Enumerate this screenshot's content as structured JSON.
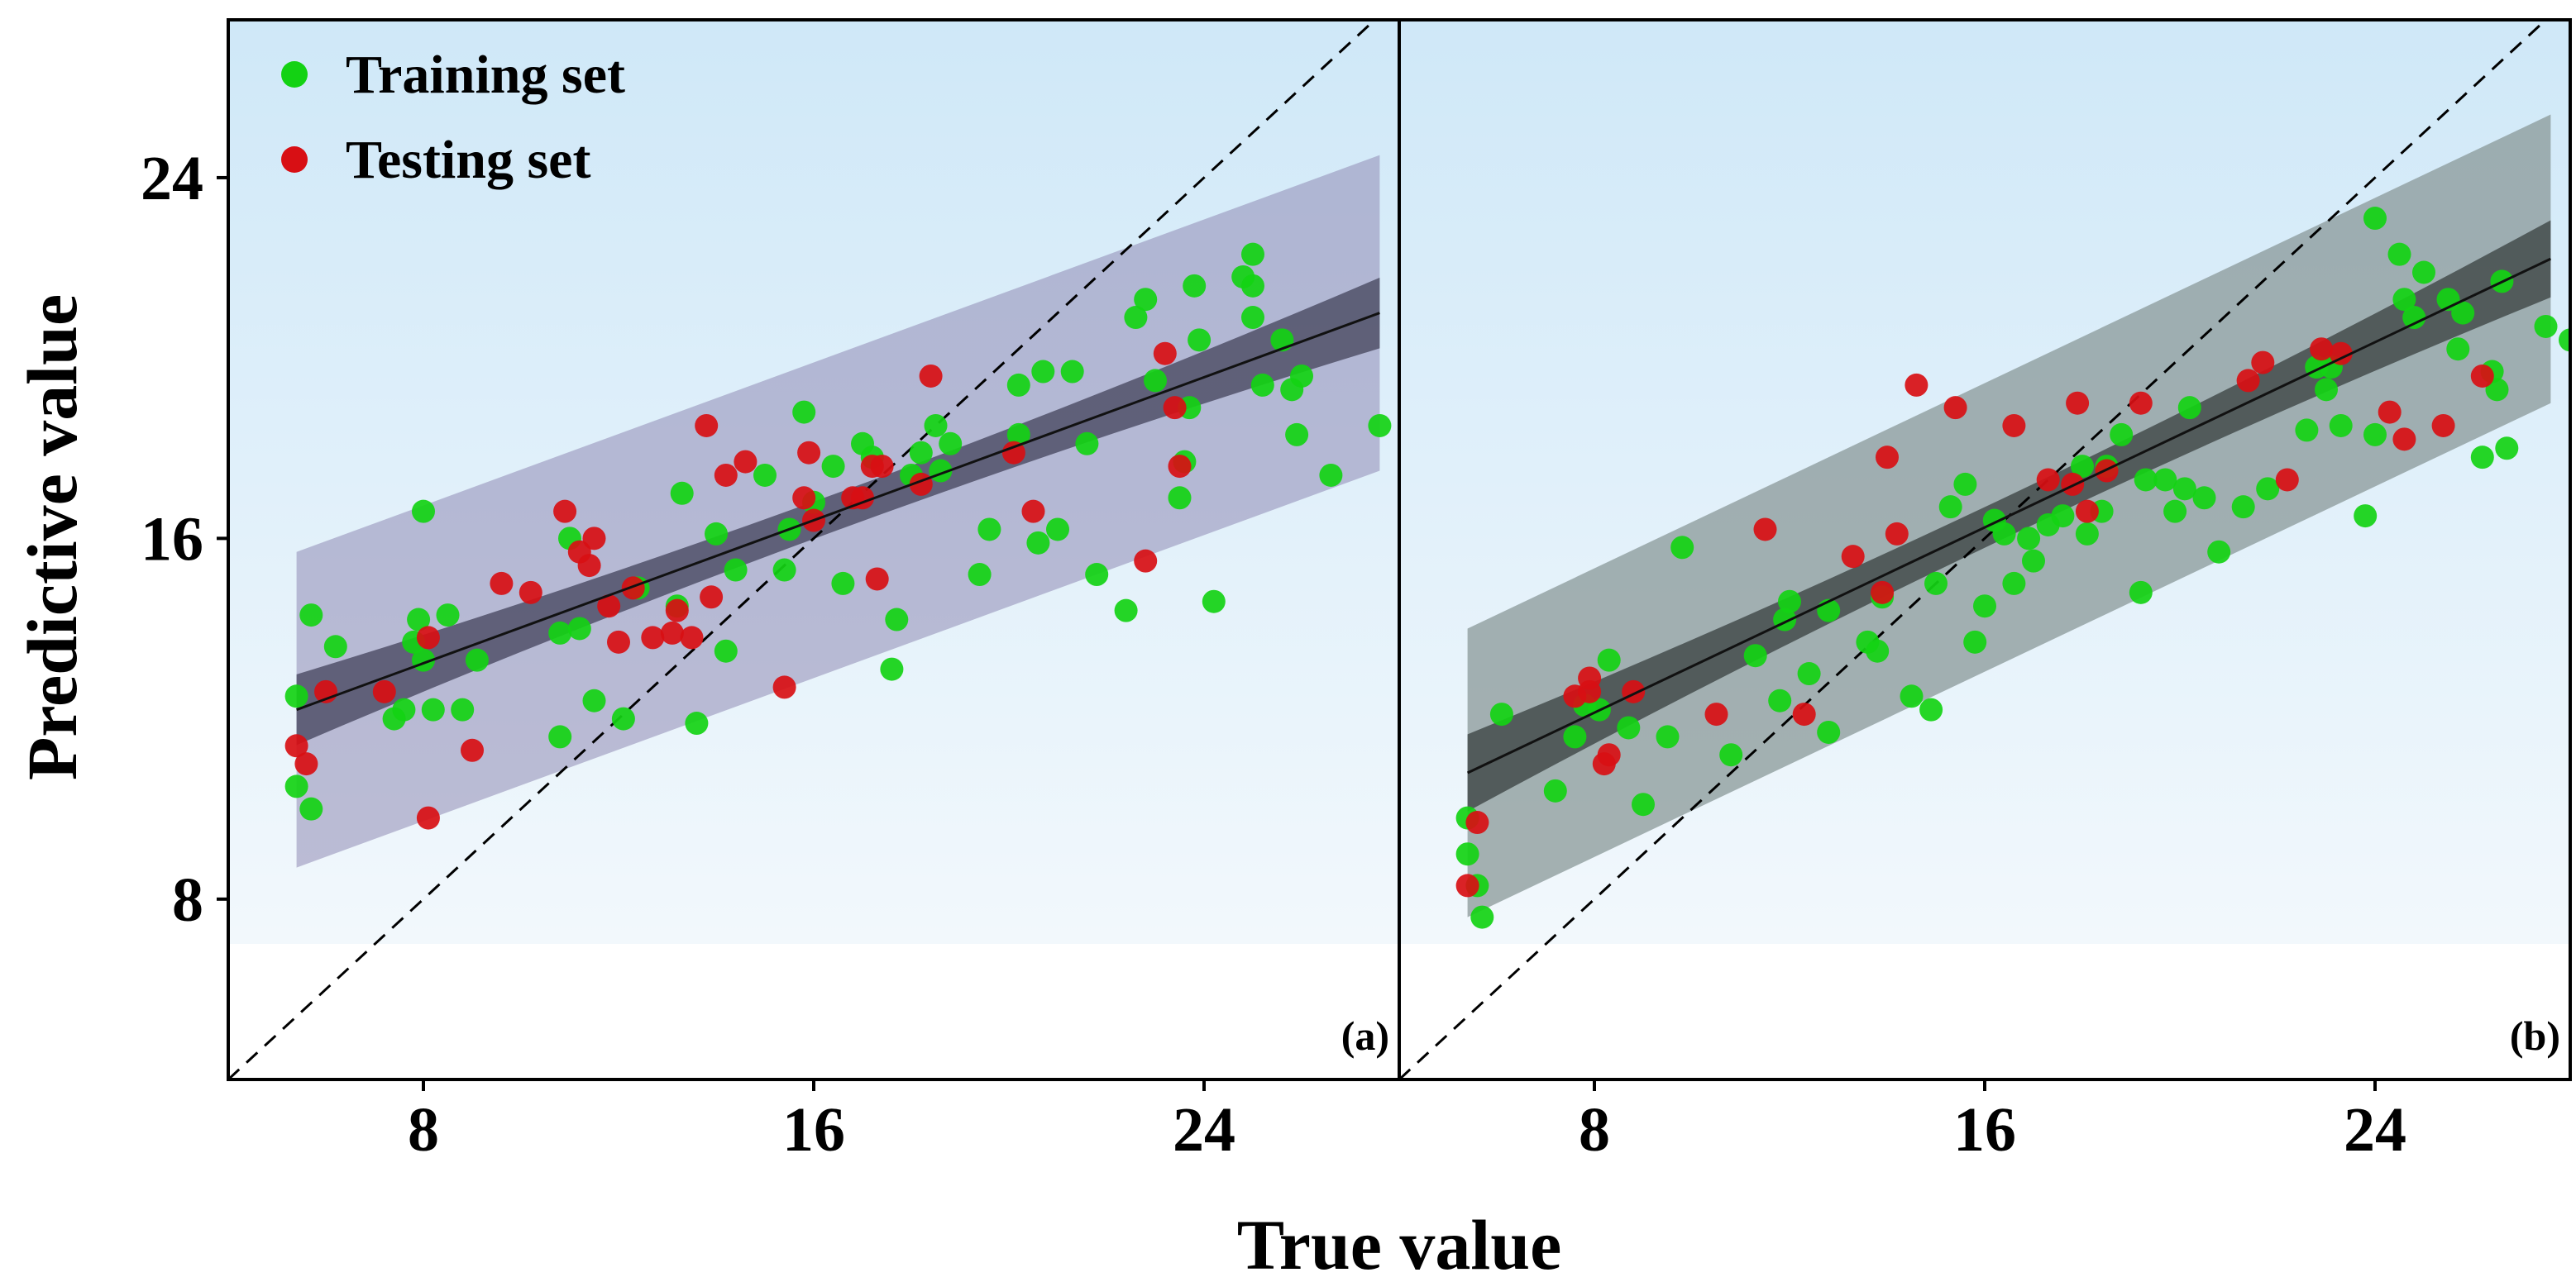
{
  "figure": {
    "xlabel": "True value",
    "ylabel": "Predictive value"
  },
  "legend": {
    "training_label": "Training set",
    "testing_label": "Testing set"
  },
  "chart_data": [
    {
      "type": "scatter",
      "panel_label": "(a)",
      "xlim": [
        4,
        28
      ],
      "ylim": [
        4,
        27.5
      ],
      "xticks": [
        8,
        16,
        24
      ],
      "yticks": [
        8,
        16,
        24
      ],
      "colors": {
        "training": "#13d213",
        "testing": "#d80f14",
        "band_pred": "#8f8ab5",
        "band_conf": "#4a4a62",
        "fit": "#111111",
        "bg_top": "#cfe8f8",
        "bg_bottom": "#f2f8fc"
      },
      "fit": {
        "x": [
          5.4,
          27.6
        ],
        "y": [
          12.2,
          21.0
        ],
        "ci_half": 0.55,
        "pi_half": 3.5
      },
      "series": [
        {
          "name": "Training set",
          "points": [
            [
              5.4,
              12.5
            ],
            [
              5.4,
              10.5
            ],
            [
              5.7,
              10.0
            ],
            [
              5.7,
              14.3
            ],
            [
              6.2,
              13.6
            ],
            [
              7.4,
              12.0
            ],
            [
              7.6,
              12.2
            ],
            [
              7.8,
              13.7
            ],
            [
              7.9,
              14.2
            ],
            [
              8.0,
              13.3
            ],
            [
              8.0,
              16.6
            ],
            [
              8.2,
              12.2
            ],
            [
              8.5,
              14.3
            ],
            [
              8.8,
              12.2
            ],
            [
              9.1,
              13.3
            ],
            [
              10.8,
              11.6
            ],
            [
              10.8,
              13.9
            ],
            [
              11.0,
              16.0
            ],
            [
              11.2,
              14.0
            ],
            [
              11.5,
              12.4
            ],
            [
              12.1,
              12.0
            ],
            [
              12.4,
              14.9
            ],
            [
              13.2,
              14.5
            ],
            [
              13.3,
              17.0
            ],
            [
              13.6,
              11.9
            ],
            [
              14.0,
              16.1
            ],
            [
              14.2,
              13.5
            ],
            [
              14.4,
              15.3
            ],
            [
              15.0,
              17.4
            ],
            [
              15.4,
              15.3
            ],
            [
              15.5,
              16.2
            ],
            [
              15.8,
              18.8
            ],
            [
              16.0,
              16.8
            ],
            [
              16.4,
              17.6
            ],
            [
              16.6,
              15.0
            ],
            [
              17.0,
              18.1
            ],
            [
              17.2,
              17.8
            ],
            [
              17.6,
              13.1
            ],
            [
              17.7,
              14.2
            ],
            [
              18.0,
              17.4
            ],
            [
              18.2,
              17.9
            ],
            [
              18.5,
              18.5
            ],
            [
              18.6,
              17.5
            ],
            [
              18.8,
              18.1
            ],
            [
              19.4,
              15.2
            ],
            [
              19.6,
              16.2
            ],
            [
              20.2,
              19.4
            ],
            [
              20.2,
              18.3
            ],
            [
              20.6,
              15.9
            ],
            [
              20.7,
              19.7
            ],
            [
              21.0,
              16.2
            ],
            [
              21.3,
              19.7
            ],
            [
              21.6,
              18.1
            ],
            [
              21.8,
              15.2
            ],
            [
              22.4,
              14.4
            ],
            [
              22.6,
              20.9
            ],
            [
              22.8,
              21.3
            ],
            [
              23.0,
              19.5
            ],
            [
              23.5,
              16.9
            ],
            [
              23.6,
              17.7
            ],
            [
              23.7,
              18.9
            ],
            [
              23.8,
              21.6
            ],
            [
              23.9,
              20.4
            ],
            [
              24.2,
              14.6
            ],
            [
              24.8,
              21.8
            ],
            [
              25.0,
              22.3
            ],
            [
              25.0,
              20.9
            ],
            [
              25.0,
              21.6
            ],
            [
              25.2,
              19.4
            ],
            [
              25.6,
              20.4
            ],
            [
              25.8,
              19.3
            ],
            [
              25.9,
              18.3
            ],
            [
              26.0,
              19.6
            ],
            [
              26.6,
              17.4
            ],
            [
              27.6,
              18.5
            ]
          ]
        },
        {
          "name": "Testing set",
          "points": [
            [
              5.4,
              11.4
            ],
            [
              5.6,
              11.0
            ],
            [
              6.0,
              12.6
            ],
            [
              7.2,
              12.6
            ],
            [
              8.1,
              13.8
            ],
            [
              8.1,
              9.8
            ],
            [
              9.0,
              11.3
            ],
            [
              9.6,
              15.0
            ],
            [
              10.2,
              14.8
            ],
            [
              10.9,
              16.6
            ],
            [
              11.2,
              15.7
            ],
            [
              11.4,
              15.4
            ],
            [
              11.5,
              16.0
            ],
            [
              11.8,
              14.5
            ],
            [
              12.0,
              13.7
            ],
            [
              12.3,
              14.9
            ],
            [
              12.7,
              13.8
            ],
            [
              13.1,
              13.9
            ],
            [
              13.2,
              14.4
            ],
            [
              13.5,
              13.8
            ],
            [
              13.8,
              18.5
            ],
            [
              13.9,
              14.7
            ],
            [
              14.2,
              17.4
            ],
            [
              14.6,
              17.7
            ],
            [
              15.4,
              12.7
            ],
            [
              15.8,
              16.9
            ],
            [
              15.9,
              17.9
            ],
            [
              16.0,
              16.4
            ],
            [
              16.8,
              16.9
            ],
            [
              17.0,
              16.9
            ],
            [
              17.2,
              17.6
            ],
            [
              17.3,
              15.1
            ],
            [
              17.4,
              17.6
            ],
            [
              18.2,
              17.2
            ],
            [
              18.4,
              19.6
            ],
            [
              20.1,
              17.9
            ],
            [
              20.5,
              16.6
            ],
            [
              22.8,
              15.5
            ],
            [
              23.2,
              20.1
            ],
            [
              23.4,
              18.9
            ],
            [
              23.5,
              17.6
            ]
          ]
        }
      ]
    },
    {
      "type": "scatter",
      "panel_label": "(b)",
      "xlim": [
        4,
        28
      ],
      "ylim": [
        4,
        27.5
      ],
      "xticks": [
        8,
        16,
        24
      ],
      "yticks": [
        8,
        16,
        24
      ],
      "colors": {
        "training": "#13d213",
        "testing": "#d80f14",
        "band_pred": "#8a9898",
        "band_conf": "#3f4646",
        "fit": "#111111",
        "bg_top": "#cfe8f8",
        "bg_bottom": "#f2f8fc"
      },
      "fit": {
        "x": [
          5.4,
          27.6
        ],
        "y": [
          10.8,
          22.2
        ],
        "ci_half": 0.6,
        "pi_half": 3.2
      },
      "series": [
        {
          "name": "Training set",
          "points": [
            [
              5.4,
              9.8
            ],
            [
              5.4,
              9.0
            ],
            [
              5.6,
              8.3
            ],
            [
              5.7,
              7.6
            ],
            [
              6.1,
              12.1
            ],
            [
              7.2,
              10.4
            ],
            [
              7.6,
              11.6
            ],
            [
              7.8,
              12.3
            ],
            [
              8.1,
              12.2
            ],
            [
              8.3,
              13.3
            ],
            [
              8.7,
              11.8
            ],
            [
              9.0,
              10.1
            ],
            [
              9.5,
              11.6
            ],
            [
              9.8,
              15.8
            ],
            [
              10.8,
              11.2
            ],
            [
              11.3,
              13.4
            ],
            [
              11.8,
              12.4
            ],
            [
              11.9,
              14.2
            ],
            [
              12.0,
              14.6
            ],
            [
              12.4,
              13.0
            ],
            [
              12.8,
              14.4
            ],
            [
              12.8,
              11.7
            ],
            [
              13.6,
              13.7
            ],
            [
              13.8,
              13.5
            ],
            [
              13.9,
              14.7
            ],
            [
              14.5,
              12.5
            ],
            [
              14.9,
              12.2
            ],
            [
              15.0,
              15.0
            ],
            [
              15.3,
              16.7
            ],
            [
              15.6,
              17.2
            ],
            [
              15.8,
              13.7
            ],
            [
              16.0,
              14.5
            ],
            [
              16.2,
              16.4
            ],
            [
              16.4,
              16.1
            ],
            [
              16.6,
              15.0
            ],
            [
              16.9,
              16.0
            ],
            [
              17.0,
              15.5
            ],
            [
              17.3,
              16.3
            ],
            [
              17.6,
              16.5
            ],
            [
              18.0,
              17.6
            ],
            [
              18.1,
              16.1
            ],
            [
              18.4,
              16.6
            ],
            [
              18.5,
              17.6
            ],
            [
              18.8,
              18.3
            ],
            [
              19.2,
              14.8
            ],
            [
              19.3,
              17.3
            ],
            [
              19.7,
              17.3
            ],
            [
              19.9,
              16.6
            ],
            [
              20.1,
              17.1
            ],
            [
              20.2,
              18.9
            ],
            [
              20.5,
              16.9
            ],
            [
              20.8,
              15.7
            ],
            [
              21.3,
              16.7
            ],
            [
              21.8,
              17.1
            ],
            [
              22.6,
              18.4
            ],
            [
              22.8,
              19.8
            ],
            [
              23.0,
              19.3
            ],
            [
              23.1,
              19.8
            ],
            [
              23.3,
              18.5
            ],
            [
              23.8,
              16.5
            ],
            [
              24.0,
              18.3
            ],
            [
              24.0,
              23.1
            ],
            [
              24.5,
              22.3
            ],
            [
              24.6,
              21.3
            ],
            [
              24.8,
              20.9
            ],
            [
              25.0,
              21.9
            ],
            [
              25.5,
              21.3
            ],
            [
              25.7,
              20.2
            ],
            [
              25.8,
              21.0
            ],
            [
              26.2,
              17.8
            ],
            [
              26.4,
              19.7
            ],
            [
              26.5,
              19.3
            ],
            [
              26.6,
              21.7
            ],
            [
              26.7,
              18.0
            ],
            [
              27.5,
              20.7
            ],
            [
              28.0,
              20.4
            ]
          ]
        },
        {
          "name": "Testing set",
          "points": [
            [
              5.4,
              8.3
            ],
            [
              5.6,
              9.7
            ],
            [
              7.6,
              12.5
            ],
            [
              7.9,
              12.6
            ],
            [
              7.9,
              12.9
            ],
            [
              8.2,
              11.0
            ],
            [
              8.3,
              11.2
            ],
            [
              8.8,
              12.6
            ],
            [
              10.5,
              12.1
            ],
            [
              11.5,
              16.2
            ],
            [
              12.3,
              12.1
            ],
            [
              13.3,
              15.6
            ],
            [
              13.9,
              14.8
            ],
            [
              14.0,
              17.8
            ],
            [
              14.2,
              16.1
            ],
            [
              14.6,
              19.4
            ],
            [
              15.4,
              18.9
            ],
            [
              16.6,
              18.5
            ],
            [
              17.3,
              17.3
            ],
            [
              17.8,
              17.2
            ],
            [
              17.9,
              19.0
            ],
            [
              18.1,
              16.6
            ],
            [
              18.5,
              17.5
            ],
            [
              19.2,
              19.0
            ],
            [
              21.4,
              19.5
            ],
            [
              21.7,
              19.9
            ],
            [
              22.2,
              17.3
            ],
            [
              22.9,
              20.2
            ],
            [
              23.3,
              20.1
            ],
            [
              24.3,
              18.8
            ],
            [
              24.6,
              18.2
            ],
            [
              25.4,
              18.5
            ],
            [
              26.2,
              19.6
            ]
          ]
        }
      ]
    }
  ]
}
